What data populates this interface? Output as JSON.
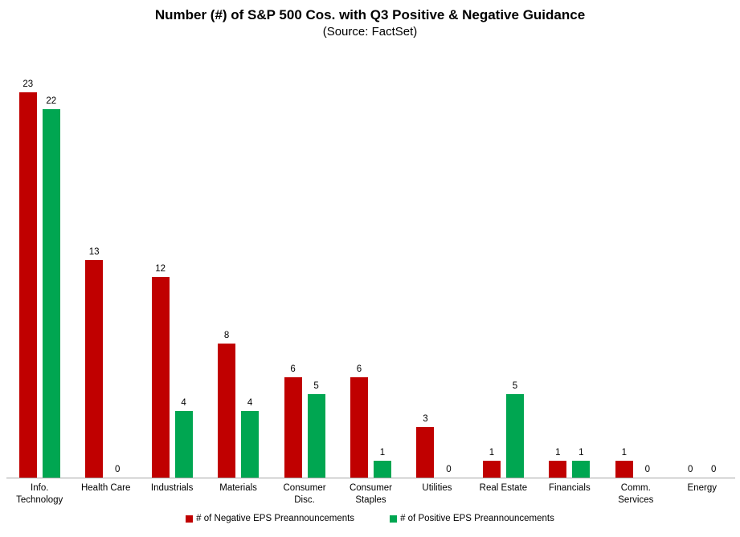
{
  "title": "Number (#) of S&P 500 Cos. with Q3 Positive & Negative Guidance",
  "subtitle": "(Source: FactSet)",
  "colors": {
    "negative": "#c00000",
    "positive": "#00a651",
    "axis_line": "#a6a6a6"
  },
  "chart_data": {
    "type": "bar",
    "title": "Number (#) of S&P 500 Cos. with Q3 Positive & Negative Guidance",
    "subtitle": "(Source: FactSet)",
    "categories": [
      "Info.\nTechnology",
      "Health Care",
      "Industrials",
      "Materials",
      "Consumer\nDisc.",
      "Consumer\nStaples",
      "Utilities",
      "Real Estate",
      "Financials",
      "Comm.\nServices",
      "Energy"
    ],
    "series": [
      {
        "name": "# of Negative EPS Preannouncements",
        "color": "#c00000",
        "values": [
          23,
          13,
          12,
          8,
          6,
          6,
          3,
          1,
          1,
          1,
          0
        ]
      },
      {
        "name": "# of Positive EPS Preannouncements",
        "color": "#00a651",
        "values": [
          22,
          0,
          4,
          4,
          5,
          1,
          0,
          5,
          1,
          0,
          0
        ]
      }
    ],
    "ylim": [
      0,
      23
    ],
    "grid": false,
    "y_axis_visible": false,
    "data_labels": true,
    "legend_position": "bottom"
  }
}
